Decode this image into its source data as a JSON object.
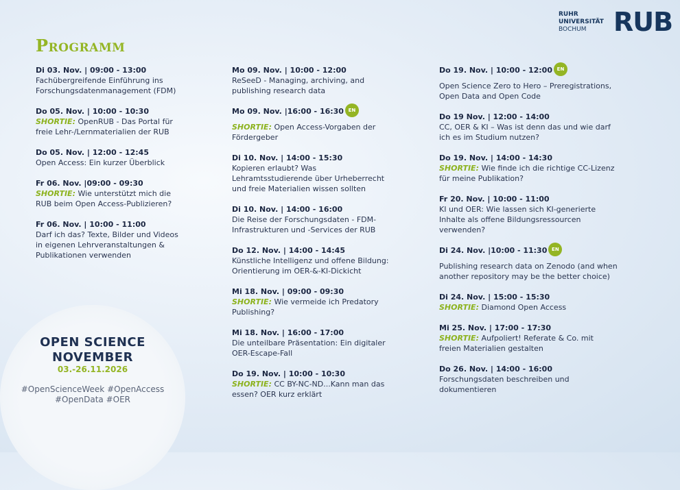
{
  "header": {
    "title": "Programm",
    "logo": {
      "lines": [
        "RUHR",
        "UNIVERSITÄT",
        "BOCHUM"
      ],
      "mark": "RUB"
    }
  },
  "columns": [
    {
      "events": [
        {
          "date": "Di 03. Nov. | 09:00 - 13:00",
          "text": "Fachübergreifende Einführung ins Forschungsdatenmanagement (FDM)"
        },
        {
          "date": "Do 05. Nov. | 10:00 - 10:30",
          "tag": "SHORTIE:",
          "text": "OpenRUB - Das Portal für freie Lehr-/Lernmaterialien der RUB"
        },
        {
          "date": "Do 05. Nov. | 12:00 - 12:45",
          "text": "Open Access: Ein kurzer Überblick"
        },
        {
          "date": "Fr 06. Nov. |09:00 - 09:30",
          "tag": "SHORTIE:",
          "text": "Wie unterstützt mich die RUB beim Open Access-Publizieren?"
        },
        {
          "date": "Fr 06. Nov. | 10:00 - 11:00",
          "text": "Darf ich das? Texte, Bilder und Videos in eigenen Lehrveranstaltungen & Publikationen verwenden"
        }
      ]
    },
    {
      "events": [
        {
          "date": "Mo 09. Nov. | 10:00 - 12:00",
          "text": "ReSeeD - Managing, archiving, and publishing research data"
        },
        {
          "date": "Mo 09. Nov. |16:00 - 16:30",
          "badge": "EN",
          "tag": "SHORTIE:",
          "text": "Open Access-Vorgaben der Fördergeber"
        },
        {
          "date": "Di 10. Nov. | 14:00 - 15:30",
          "text": "Kopieren erlaubt? Was Lehramtsstudierende über Urheberrecht und freie Materialien wissen sollten"
        },
        {
          "date": "Di 10. Nov. | 14:00 - 16:00",
          "text": "Die Reise der Forschungsdaten - FDM-Infrastrukturen und -Services der RUB"
        },
        {
          "date": "Do 12. Nov. | 14:00 - 14:45",
          "text": "Künstliche Intelligenz und offene Bildung: Orientierung im OER-&-KI-Dickicht"
        },
        {
          "date": "Mi 18. Nov. | 09:00 - 09:30",
          "tag": "SHORTIE:",
          "text": "Wie vermeide ich Predatory Publishing?"
        },
        {
          "date": "Mi 18. Nov. | 16:00 - 17:00",
          "text": "Die unteilbare Präsentation: Ein digitaler OER-Escape-Fall"
        },
        {
          "date": "Do 19. Nov. | 10:00 - 10:30",
          "tag": "SHORTIE:",
          "text": "CC BY-NC-ND...Kann man das essen? OER kurz erklärt"
        }
      ]
    },
    {
      "events": [
        {
          "date": "Do 19. Nov. | 10:00 - 12:00",
          "badge": "EN",
          "text": "Open Science Zero to Hero – Preregistrations, Open Data and Open Code"
        },
        {
          "date": "Do 19 Nov. | 12:00 - 14:00",
          "text": "CC, OER & KI – Was ist denn das und wie darf ich es im Studium nutzen?"
        },
        {
          "date": "Do 19. Nov. | 14:00 - 14:30",
          "tag": "SHORTIE:",
          "text": "Wie finde ich die richtige CC-Lizenz für meine Publikation?"
        },
        {
          "date": "Fr 20. Nov. | 10:00 - 11:00",
          "text": "KI und OER: Wie lassen sich KI-generierte Inhalte als offene Bildungsressourcen verwenden?"
        },
        {
          "date": "Di 24. Nov. |10:00 - 11:30",
          "badge": "EN",
          "text": "Publishing research data on Zenodo (and when another repository may be the better choice)"
        },
        {
          "date": "Di 24. Nov. | 15:00 - 15:30",
          "tag": "SHORTIE:",
          "text": "Diamond Open Access"
        },
        {
          "date": "Mi 25. Nov. | 17:00 - 17:30",
          "tag": "SHORTIE:",
          "text": "Aufpoliert! Referate & Co. mit freien Materialien gestalten"
        },
        {
          "date": "Do 26. Nov. | 14:00 - 16:00",
          "text": "Forschungsdaten beschreiben und dokumentieren"
        }
      ]
    }
  ],
  "badge": {
    "lines": [
      "OPEN SCIENCE",
      "NOVEMBER"
    ],
    "dates": "03.-26.11.2026",
    "hashtags": [
      "#OpenScienceWeek #OpenAccess",
      "#OpenData #OER"
    ]
  }
}
